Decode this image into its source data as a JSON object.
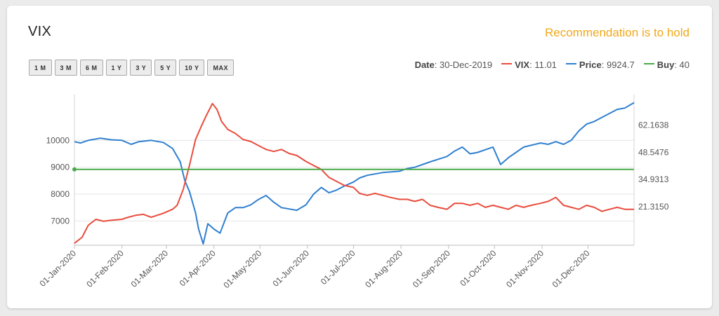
{
  "title": "VIX",
  "recommendation": "Recommendation is to hold",
  "range_buttons": [
    "1 M",
    "3 M",
    "6 M",
    "1 Y",
    "3 Y",
    "5 Y",
    "10 Y",
    "MAX"
  ],
  "legend": {
    "date_label": "Date",
    "date_value": "30-Dec-2019",
    "vix_label": "VIX",
    "vix_value": "11.01",
    "price_label": "Price",
    "price_value": "9924.7",
    "buy_label": "Buy",
    "buy_value": "40"
  },
  "colors": {
    "vix": "#e84c3d",
    "price": "#2f7fd0",
    "buy": "#4aaa4a",
    "recommendation": "#f1a81a"
  },
  "chart_data": {
    "type": "line",
    "x_axis": {
      "type": "date",
      "range": [
        "2020-01-01",
        "2020-12-31"
      ],
      "tick_labels": [
        "01-Jan-2020",
        "01-Feb-2020",
        "01-Mar-2020",
        "01-Apr-2020",
        "01-May-2020",
        "01-Jun-2020",
        "01-Jul-2020",
        "01-Aug-2020",
        "01-Sep-2020",
        "01-Oct-2020",
        "01-Nov-2020",
        "01-Dec-2020"
      ],
      "tick_dates": [
        "2020-01-01",
        "2020-02-01",
        "2020-03-01",
        "2020-04-01",
        "2020-05-01",
        "2020-06-01",
        "2020-07-01",
        "2020-08-01",
        "2020-09-01",
        "2020-10-01",
        "2020-11-01",
        "2020-12-01"
      ]
    },
    "y_left": {
      "ticks": [
        7000,
        8000,
        9000,
        10000
      ],
      "tick_labels": [
        "7000",
        "8000",
        "9000",
        "10000"
      ],
      "range": [
        6100,
        11700
      ]
    },
    "y_right": {
      "ticks": [
        21.315,
        34.931,
        48.547,
        62.163
      ],
      "tick_labels": [
        "21.3150",
        "34.9313",
        "48.5476",
        "62.1638"
      ],
      "range": [
        2,
        77.5
      ]
    },
    "grid": true,
    "series": [
      {
        "name": "Price",
        "axis": "left",
        "points": [
          [
            "2020-01-01",
            9950
          ],
          [
            "2020-01-05",
            9900
          ],
          [
            "2020-01-10",
            10000
          ],
          [
            "2020-01-18",
            10080
          ],
          [
            "2020-01-25",
            10020
          ],
          [
            "2020-02-01",
            10000
          ],
          [
            "2020-02-07",
            9850
          ],
          [
            "2020-02-12",
            9950
          ],
          [
            "2020-02-20",
            10000
          ],
          [
            "2020-02-28",
            9920
          ],
          [
            "2020-03-05",
            9700
          ],
          [
            "2020-03-10",
            9200
          ],
          [
            "2020-03-13",
            8500
          ],
          [
            "2020-03-16",
            8100
          ],
          [
            "2020-03-20",
            7300
          ],
          [
            "2020-03-22",
            6700
          ],
          [
            "2020-03-25",
            6150
          ],
          [
            "2020-03-28",
            6900
          ],
          [
            "2020-04-01",
            6700
          ],
          [
            "2020-04-05",
            6550
          ],
          [
            "2020-04-10",
            7300
          ],
          [
            "2020-04-15",
            7500
          ],
          [
            "2020-04-20",
            7500
          ],
          [
            "2020-04-25",
            7600
          ],
          [
            "2020-04-30",
            7800
          ],
          [
            "2020-05-05",
            7950
          ],
          [
            "2020-05-10",
            7700
          ],
          [
            "2020-05-15",
            7500
          ],
          [
            "2020-05-20",
            7450
          ],
          [
            "2020-05-25",
            7400
          ],
          [
            "2020-05-31",
            7600
          ],
          [
            "2020-06-05",
            8000
          ],
          [
            "2020-06-10",
            8250
          ],
          [
            "2020-06-15",
            8050
          ],
          [
            "2020-06-20",
            8150
          ],
          [
            "2020-06-25",
            8300
          ],
          [
            "2020-07-01",
            8450
          ],
          [
            "2020-07-05",
            8600
          ],
          [
            "2020-07-10",
            8700
          ],
          [
            "2020-07-20",
            8800
          ],
          [
            "2020-07-31",
            8850
          ],
          [
            "2020-08-05",
            8950
          ],
          [
            "2020-08-10",
            9000
          ],
          [
            "2020-08-20",
            9200
          ],
          [
            "2020-08-31",
            9400
          ],
          [
            "2020-09-05",
            9600
          ],
          [
            "2020-09-10",
            9750
          ],
          [
            "2020-09-15",
            9500
          ],
          [
            "2020-09-20",
            9550
          ],
          [
            "2020-09-25",
            9650
          ],
          [
            "2020-09-30",
            9750
          ],
          [
            "2020-10-05",
            9100
          ],
          [
            "2020-10-10",
            9350
          ],
          [
            "2020-10-15",
            9550
          ],
          [
            "2020-10-20",
            9750
          ],
          [
            "2020-10-31",
            9900
          ],
          [
            "2020-11-05",
            9850
          ],
          [
            "2020-11-10",
            9950
          ],
          [
            "2020-11-15",
            9850
          ],
          [
            "2020-11-20",
            10000
          ],
          [
            "2020-11-25",
            10350
          ],
          [
            "2020-11-30",
            10600
          ],
          [
            "2020-12-05",
            10700
          ],
          [
            "2020-12-10",
            10850
          ],
          [
            "2020-12-15",
            11000
          ],
          [
            "2020-12-20",
            11150
          ],
          [
            "2020-12-25",
            11200
          ],
          [
            "2020-12-31",
            11400
          ]
        ]
      },
      {
        "name": "VIX",
        "axis": "right",
        "points": [
          [
            "2020-01-01",
            3
          ],
          [
            "2020-01-06",
            6
          ],
          [
            "2020-01-10",
            12
          ],
          [
            "2020-01-15",
            15
          ],
          [
            "2020-01-20",
            14
          ],
          [
            "2020-01-25",
            14.5
          ],
          [
            "2020-02-01",
            15
          ],
          [
            "2020-02-05",
            16
          ],
          [
            "2020-02-10",
            17
          ],
          [
            "2020-02-15",
            17.5
          ],
          [
            "2020-02-20",
            16
          ],
          [
            "2020-02-28",
            18
          ],
          [
            "2020-03-05",
            20
          ],
          [
            "2020-03-08",
            22
          ],
          [
            "2020-03-12",
            30
          ],
          [
            "2020-03-16",
            42
          ],
          [
            "2020-03-20",
            55
          ],
          [
            "2020-03-24",
            62
          ],
          [
            "2020-03-27",
            67
          ],
          [
            "2020-03-31",
            73
          ],
          [
            "2020-04-03",
            70
          ],
          [
            "2020-04-06",
            64
          ],
          [
            "2020-04-10",
            60
          ],
          [
            "2020-04-15",
            58
          ],
          [
            "2020-04-20",
            55
          ],
          [
            "2020-04-25",
            54
          ],
          [
            "2020-04-30",
            52
          ],
          [
            "2020-05-05",
            50
          ],
          [
            "2020-05-10",
            49
          ],
          [
            "2020-05-15",
            50
          ],
          [
            "2020-05-20",
            48
          ],
          [
            "2020-05-25",
            47
          ],
          [
            "2020-05-31",
            44
          ],
          [
            "2020-06-05",
            42
          ],
          [
            "2020-06-10",
            40
          ],
          [
            "2020-06-15",
            36
          ],
          [
            "2020-06-20",
            34
          ],
          [
            "2020-06-25",
            32
          ],
          [
            "2020-07-01",
            31
          ],
          [
            "2020-07-05",
            28
          ],
          [
            "2020-07-10",
            27
          ],
          [
            "2020-07-15",
            28
          ],
          [
            "2020-07-20",
            27
          ],
          [
            "2020-07-25",
            26
          ],
          [
            "2020-07-31",
            25
          ],
          [
            "2020-08-05",
            25
          ],
          [
            "2020-08-10",
            24
          ],
          [
            "2020-08-15",
            25
          ],
          [
            "2020-08-20",
            22
          ],
          [
            "2020-08-25",
            21
          ],
          [
            "2020-08-31",
            20
          ],
          [
            "2020-09-05",
            23
          ],
          [
            "2020-09-10",
            23
          ],
          [
            "2020-09-15",
            22
          ],
          [
            "2020-09-20",
            23
          ],
          [
            "2020-09-25",
            21
          ],
          [
            "2020-09-30",
            22
          ],
          [
            "2020-10-05",
            21
          ],
          [
            "2020-10-10",
            20
          ],
          [
            "2020-10-15",
            22
          ],
          [
            "2020-10-20",
            21
          ],
          [
            "2020-10-25",
            22
          ],
          [
            "2020-10-31",
            23
          ],
          [
            "2020-11-05",
            24
          ],
          [
            "2020-11-10",
            26
          ],
          [
            "2020-11-15",
            22
          ],
          [
            "2020-11-20",
            21
          ],
          [
            "2020-11-25",
            20
          ],
          [
            "2020-11-30",
            22
          ],
          [
            "2020-12-05",
            21
          ],
          [
            "2020-12-10",
            19
          ],
          [
            "2020-12-15",
            20
          ],
          [
            "2020-12-20",
            21
          ],
          [
            "2020-12-25",
            20
          ],
          [
            "2020-12-31",
            20
          ]
        ]
      },
      {
        "name": "Buy",
        "axis": "right",
        "points": [
          [
            "2020-01-01",
            40
          ],
          [
            "2020-12-31",
            40
          ]
        ]
      }
    ]
  }
}
